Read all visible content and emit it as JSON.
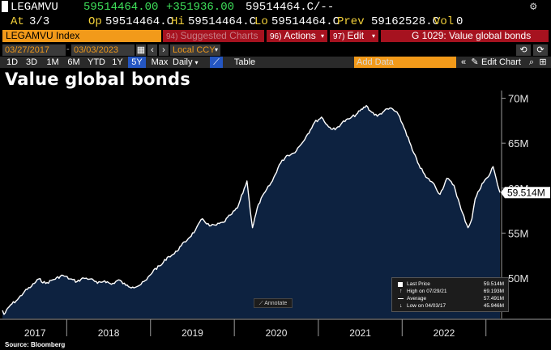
{
  "quote": {
    "ticker": "LEGAMVU",
    "last": "59514464.00",
    "change": "+351936.00",
    "bid_ask": "59514464.C/--",
    "at_label": "At",
    "at_value": "3/3",
    "open_label": "Op",
    "open_value": "59514464.C",
    "high_label": "Hi",
    "high_value": "59514464.C",
    "low_label": "Lo",
    "low_value": "59514464.C",
    "prev_label": "Prev",
    "prev_value": "59162528.C",
    "vol_label": "Vol",
    "vol_value": "0"
  },
  "toolbar": {
    "security": "LEGAMVU Index",
    "suggested_num": "94)",
    "suggested_label": "Suggested Charts",
    "actions_num": "96)",
    "actions_label": "Actions",
    "edit_num": "97)",
    "edit_label": "Edit",
    "chart_name": "G 1029: Value global bonds"
  },
  "range": {
    "start_date": "03/27/2017",
    "end_date": "03/03/2023",
    "currency": "Local CCY"
  },
  "periods": [
    "1D",
    "3D",
    "1M",
    "6M",
    "YTD",
    "1Y",
    "5Y",
    "Max"
  ],
  "active_period": "5Y",
  "frequency": "Daily",
  "table_label": "Table",
  "add_data_placeholder": "Add Data",
  "edit_chart_label": "Edit Chart",
  "title": "Value global bonds",
  "source": "Source: Bloomberg",
  "annotate_label": "Annotate",
  "last_price_tag": "59.514M",
  "legend": {
    "rows": [
      {
        "label": "Last Price",
        "value": "59.514M"
      },
      {
        "label": "High on 07/29/21",
        "value": "69.193M"
      },
      {
        "label": "Average",
        "value": "57.491M"
      },
      {
        "label": "Low on 04/03/17",
        "value": "45.946M"
      }
    ]
  },
  "colors": {
    "background": "#000000",
    "area_fill": "#0d2240",
    "line": "#ffffff",
    "up": "#3ee05a",
    "accent_orange": "#f29a1a",
    "accent_red": "#a6121f",
    "active_tab": "#2456c2"
  },
  "chart_data": {
    "type": "area",
    "title": "Value global bonds",
    "xlabel": "",
    "ylabel": "",
    "x_ticks": [
      "2017",
      "2018",
      "2019",
      "2020",
      "2021",
      "2022"
    ],
    "y_ticks": [
      "50M",
      "55M",
      "60M",
      "65M",
      "70M"
    ],
    "ylim": [
      45.5,
      70.5
    ],
    "xlim": [
      "2017-03-27",
      "2023-03-03"
    ],
    "grid": false,
    "series": [
      {
        "values": [
          [
            "2017-03-27",
            46.4
          ],
          [
            "2017-04-03",
            45.95
          ],
          [
            "2017-05-01",
            47.0
          ],
          [
            "2017-06-01",
            47.6
          ],
          [
            "2017-07-01",
            48.5
          ],
          [
            "2017-08-01",
            49.1
          ],
          [
            "2017-09-01",
            49.9
          ],
          [
            "2017-10-01",
            49.4
          ],
          [
            "2017-11-01",
            49.8
          ],
          [
            "2017-12-15",
            50.3
          ],
          [
            "2018-01-15",
            49.9
          ],
          [
            "2018-02-15",
            49.6
          ],
          [
            "2018-03-15",
            50.0
          ],
          [
            "2018-04-15",
            49.9
          ],
          [
            "2018-05-15",
            49.4
          ],
          [
            "2018-06-15",
            49.7
          ],
          [
            "2018-07-15",
            49.3
          ],
          [
            "2018-08-15",
            49.8
          ],
          [
            "2018-09-15",
            49.2
          ],
          [
            "2018-10-15",
            49.0
          ],
          [
            "2018-11-15",
            49.2
          ],
          [
            "2018-12-15",
            49.8
          ],
          [
            "2019-01-15",
            50.9
          ],
          [
            "2019-02-15",
            51.4
          ],
          [
            "2019-03-15",
            52.3
          ],
          [
            "2019-04-15",
            52.7
          ],
          [
            "2019-05-15",
            53.6
          ],
          [
            "2019-06-15",
            54.4
          ],
          [
            "2019-07-15",
            55.3
          ],
          [
            "2019-08-15",
            56.6
          ],
          [
            "2019-09-15",
            55.8
          ],
          [
            "2019-10-15",
            55.9
          ],
          [
            "2019-11-15",
            56.2
          ],
          [
            "2019-12-15",
            57.0
          ],
          [
            "2020-01-15",
            57.8
          ],
          [
            "2020-02-25",
            60.8
          ],
          [
            "2020-03-05",
            58.8
          ],
          [
            "2020-03-20",
            55.6
          ],
          [
            "2020-04-15",
            58.2
          ],
          [
            "2020-05-15",
            59.6
          ],
          [
            "2020-06-15",
            60.8
          ],
          [
            "2020-07-15",
            62.6
          ],
          [
            "2020-08-15",
            63.6
          ],
          [
            "2020-09-15",
            63.9
          ],
          [
            "2020-10-15",
            64.8
          ],
          [
            "2020-11-15",
            66.0
          ],
          [
            "2020-12-15",
            67.3
          ],
          [
            "2021-01-15",
            67.9
          ],
          [
            "2021-02-15",
            66.8
          ],
          [
            "2021-03-15",
            66.5
          ],
          [
            "2021-04-15",
            67.3
          ],
          [
            "2021-05-15",
            67.7
          ],
          [
            "2021-06-15",
            68.2
          ],
          [
            "2021-07-29",
            69.19
          ],
          [
            "2021-08-15",
            68.6
          ],
          [
            "2021-09-15",
            68.0
          ],
          [
            "2021-10-15",
            68.6
          ],
          [
            "2021-11-15",
            68.9
          ],
          [
            "2021-12-15",
            68.2
          ],
          [
            "2022-01-15",
            66.4
          ],
          [
            "2022-02-15",
            64.2
          ],
          [
            "2022-03-15",
            62.6
          ],
          [
            "2022-04-15",
            61.2
          ],
          [
            "2022-05-15",
            60.6
          ],
          [
            "2022-06-15",
            59.3
          ],
          [
            "2022-07-15",
            61.1
          ],
          [
            "2022-08-15",
            60.3
          ],
          [
            "2022-09-15",
            57.6
          ],
          [
            "2022-10-15",
            55.6
          ],
          [
            "2022-11-01",
            56.6
          ],
          [
            "2022-11-15",
            58.8
          ],
          [
            "2022-12-15",
            60.5
          ],
          [
            "2023-01-15",
            61.4
          ],
          [
            "2023-02-01",
            62.4
          ],
          [
            "2023-02-15",
            61.0
          ],
          [
            "2023-03-03",
            59.51
          ]
        ]
      }
    ]
  }
}
